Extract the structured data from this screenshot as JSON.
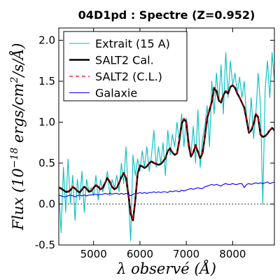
{
  "chart_data": {
    "type": "line",
    "title": "04D1pd : Spectre (Z=0.952)",
    "xlabel": "λ observé (Å)",
    "ylabel": "Flux (10⁻¹⁸ ergs/cm²/s/Å)",
    "xlim": [
      4250,
      8900
    ],
    "ylim": [
      -0.5,
      2.15
    ],
    "xticks": [
      5000,
      6000,
      7000,
      8000
    ],
    "xtick_labels": [
      "5000",
      "6000",
      "7000",
      "8000"
    ],
    "yticks": [
      -0.5,
      0.0,
      0.5,
      1.0,
      1.5,
      2.0
    ],
    "ytick_labels": [
      "-0.5",
      "0.0",
      "0.5",
      "1.0",
      "1.5",
      "2.0"
    ],
    "zero_line": true,
    "grid": false,
    "legend_position": "top-left",
    "series": [
      {
        "name": "Extrait (15 A)",
        "color": "#00bfbf",
        "style": "solid",
        "x": [
          4250,
          4300,
          4350,
          4400,
          4450,
          4500,
          4550,
          4600,
          4650,
          4700,
          4750,
          4800,
          4850,
          4900,
          4950,
          5000,
          5050,
          5100,
          5150,
          5200,
          5250,
          5300,
          5350,
          5400,
          5450,
          5500,
          5550,
          5600,
          5650,
          5700,
          5750,
          5800,
          5850,
          5900,
          5950,
          6000,
          6050,
          6100,
          6150,
          6200,
          6250,
          6300,
          6350,
          6400,
          6450,
          6500,
          6550,
          6600,
          6650,
          6700,
          6750,
          6800,
          6850,
          6900,
          6950,
          7000,
          7050,
          7100,
          7150,
          7200,
          7250,
          7300,
          7350,
          7400,
          7450,
          7500,
          7550,
          7600,
          7650,
          7700,
          7750,
          7800,
          7850,
          7900,
          7950,
          8000,
          8050,
          8100,
          8150,
          8200,
          8250,
          8300,
          8350,
          8400,
          8450,
          8500,
          8550,
          8600,
          8650,
          8700,
          8750,
          8800,
          8850,
          8900
        ],
        "y": [
          0.18,
          -0.35,
          0.45,
          -0.1,
          0.55,
          0.0,
          0.35,
          -0.2,
          0.3,
          0.05,
          0.4,
          -0.1,
          0.3,
          0.15,
          0.2,
          0.1,
          0.35,
          0.05,
          0.3,
          0.15,
          0.25,
          0.4,
          0.1,
          0.3,
          0.2,
          0.35,
          0.15,
          0.5,
          0.25,
          0.7,
          0.1,
          -0.45,
          0.6,
          0.35,
          0.55,
          0.4,
          0.65,
          0.45,
          0.7,
          0.4,
          0.6,
          0.9,
          0.45,
          0.7,
          0.5,
          0.75,
          0.35,
          0.9,
          0.6,
          0.85,
          0.7,
          1.0,
          0.75,
          1.1,
          0.7,
          1.05,
          0.8,
          0.6,
          0.95,
          0.5,
          1.15,
          0.45,
          0.8,
          0.95,
          1.2,
          0.7,
          1.5,
          1.1,
          1.6,
          1.25,
          1.7,
          1.1,
          1.85,
          1.3,
          1.75,
          1.45,
          1.6,
          1.35,
          1.55,
          1.3,
          1.5,
          1.05,
          0.9,
          1.3,
          0.8,
          1.1,
          1.6,
          1.2,
          0.0,
          1.4,
          1.75,
          1.3,
          1.85,
          1.5
        ]
      },
      {
        "name": "SALT2 Cal.",
        "color": "#000000",
        "style": "solid-thick",
        "x": [
          4250,
          4300,
          4350,
          4400,
          4450,
          4500,
          4550,
          4600,
          4650,
          4700,
          4750,
          4800,
          4850,
          4900,
          4950,
          5000,
          5050,
          5100,
          5150,
          5200,
          5250,
          5300,
          5350,
          5400,
          5450,
          5500,
          5550,
          5600,
          5650,
          5700,
          5750,
          5800,
          5850,
          5900,
          5950,
          6000,
          6050,
          6100,
          6150,
          6200,
          6250,
          6300,
          6350,
          6400,
          6450,
          6500,
          6550,
          6600,
          6650,
          6700,
          6750,
          6800,
          6850,
          6900,
          6950,
          7000,
          7050,
          7100,
          7150,
          7200,
          7250,
          7300,
          7350,
          7400,
          7450,
          7500,
          7550,
          7600,
          7650,
          7700,
          7750,
          7800,
          7850,
          7900,
          7950,
          8000,
          8050,
          8100,
          8150,
          8200,
          8250,
          8300,
          8350,
          8400,
          8450,
          8500,
          8550,
          8600,
          8650,
          8700,
          8750,
          8800,
          8850,
          8900
        ],
        "y": [
          0.2,
          0.19,
          0.17,
          0.15,
          0.15,
          0.17,
          0.21,
          0.19,
          0.16,
          0.14,
          0.18,
          0.21,
          0.19,
          0.15,
          0.16,
          0.2,
          0.23,
          0.21,
          0.18,
          0.2,
          0.26,
          0.32,
          0.27,
          0.21,
          0.18,
          0.2,
          0.26,
          0.33,
          0.38,
          0.32,
          0.12,
          -0.12,
          -0.2,
          0.05,
          0.37,
          0.47,
          0.46,
          0.44,
          0.46,
          0.5,
          0.52,
          0.5,
          0.49,
          0.48,
          0.49,
          0.52,
          0.56,
          0.65,
          0.68,
          0.63,
          0.6,
          0.62,
          0.78,
          0.98,
          1.04,
          1.0,
          0.72,
          0.58,
          0.63,
          0.72,
          0.64,
          0.56,
          0.62,
          0.82,
          1.05,
          1.15,
          1.25,
          1.42,
          1.38,
          1.27,
          1.24,
          1.33,
          1.38,
          1.35,
          1.43,
          1.45,
          1.42,
          1.35,
          1.3,
          1.24,
          1.18,
          1.03,
          0.87,
          0.9,
          0.98,
          1.1,
          1.06,
          0.85,
          0.82,
          0.83,
          0.86,
          0.9,
          0.93,
          0.9
        ]
      },
      {
        "name": "SALT2 (C.L.)",
        "color": "#ff0000",
        "style": "dashed",
        "x": [
          4250,
          4300,
          4350,
          4400,
          4450,
          4500,
          4550,
          4600,
          4650,
          4700,
          4750,
          4800,
          4850,
          4900,
          4950,
          5000,
          5050,
          5100,
          5150,
          5200,
          5250,
          5300,
          5350,
          5400,
          5450,
          5500,
          5550,
          5600,
          5650,
          5700,
          5750,
          5800,
          5850,
          5900,
          5950,
          6000,
          6050,
          6100,
          6150,
          6200,
          6250,
          6300,
          6350,
          6400,
          6450,
          6500,
          6550,
          6600,
          6650,
          6700,
          6750,
          6800,
          6850,
          6900,
          6950,
          7000,
          7050,
          7100,
          7150,
          7200,
          7250,
          7300,
          7350,
          7400,
          7450,
          7500,
          7550,
          7600,
          7650,
          7700,
          7750,
          7800,
          7850,
          7900,
          7950,
          8000,
          8050,
          8100,
          8150,
          8200,
          8250,
          8300,
          8350,
          8400,
          8450,
          8500,
          8550,
          8600,
          8650,
          8700,
          8750,
          8800,
          8850,
          8900
        ],
        "y": [
          0.21,
          0.2,
          0.18,
          0.16,
          0.16,
          0.18,
          0.22,
          0.2,
          0.17,
          0.15,
          0.19,
          0.22,
          0.2,
          0.16,
          0.17,
          0.21,
          0.24,
          0.22,
          0.19,
          0.21,
          0.27,
          0.33,
          0.28,
          0.22,
          0.19,
          0.21,
          0.27,
          0.34,
          0.39,
          0.33,
          0.13,
          -0.11,
          -0.19,
          0.06,
          0.38,
          0.48,
          0.47,
          0.45,
          0.47,
          0.51,
          0.53,
          0.51,
          0.5,
          0.49,
          0.5,
          0.53,
          0.57,
          0.66,
          0.69,
          0.64,
          0.61,
          0.63,
          0.79,
          0.99,
          1.05,
          1.01,
          0.73,
          0.59,
          0.64,
          0.73,
          0.65,
          0.57,
          0.63,
          0.83,
          1.06,
          1.16,
          1.26,
          1.43,
          1.39,
          1.28,
          1.25,
          1.34,
          1.39,
          1.36,
          1.44,
          1.46,
          1.43,
          1.36,
          1.31,
          1.25,
          1.19,
          1.04,
          0.88,
          0.91,
          0.99,
          1.11,
          1.07,
          0.86,
          0.83,
          0.84,
          0.87,
          0.91,
          0.94,
          0.91
        ]
      },
      {
        "name": "Galaxie",
        "color": "#0000ff",
        "style": "solid",
        "x": [
          4250,
          4300,
          4350,
          4400,
          4450,
          4500,
          4550,
          4600,
          4650,
          4700,
          4750,
          4800,
          4850,
          4900,
          4950,
          5000,
          5050,
          5100,
          5150,
          5200,
          5250,
          5300,
          5350,
          5400,
          5450,
          5500,
          5550,
          5600,
          5650,
          5700,
          5750,
          5800,
          5850,
          5900,
          5950,
          6000,
          6050,
          6100,
          6150,
          6200,
          6250,
          6300,
          6350,
          6400,
          6450,
          6500,
          6550,
          6600,
          6650,
          6700,
          6750,
          6800,
          6850,
          6900,
          6950,
          7000,
          7050,
          7100,
          7150,
          7200,
          7250,
          7300,
          7350,
          7400,
          7450,
          7500,
          7550,
          7600,
          7650,
          7700,
          7750,
          7800,
          7850,
          7900,
          7950,
          8000,
          8050,
          8100,
          8150,
          8200,
          8250,
          8300,
          8350,
          8400,
          8450,
          8500,
          8550,
          8600,
          8650,
          8700,
          8750,
          8800,
          8850,
          8900
        ],
        "y": [
          0.11,
          0.1,
          0.09,
          0.09,
          0.1,
          0.11,
          0.1,
          0.09,
          0.1,
          0.11,
          0.1,
          0.11,
          0.1,
          0.11,
          0.11,
          0.12,
          0.12,
          0.11,
          0.12,
          0.12,
          0.13,
          0.12,
          0.13,
          0.12,
          0.13,
          0.13,
          0.12,
          0.13,
          0.12,
          0.13,
          0.12,
          0.1,
          0.12,
          0.13,
          0.13,
          0.14,
          0.13,
          0.14,
          0.13,
          0.14,
          0.14,
          0.15,
          0.14,
          0.15,
          0.14,
          0.15,
          0.15,
          0.14,
          0.16,
          0.15,
          0.16,
          0.16,
          0.15,
          0.17,
          0.16,
          0.17,
          0.18,
          0.19,
          0.18,
          0.19,
          0.2,
          0.19,
          0.19,
          0.21,
          0.22,
          0.23,
          0.24,
          0.23,
          0.24,
          0.23,
          0.22,
          0.24,
          0.25,
          0.24,
          0.24,
          0.25,
          0.24,
          0.24,
          0.25,
          0.25,
          0.2,
          0.24,
          0.25,
          0.24,
          0.25,
          0.26,
          0.25,
          0.26,
          0.25,
          0.26,
          0.27,
          0.25,
          0.26,
          0.27
        ]
      }
    ]
  }
}
